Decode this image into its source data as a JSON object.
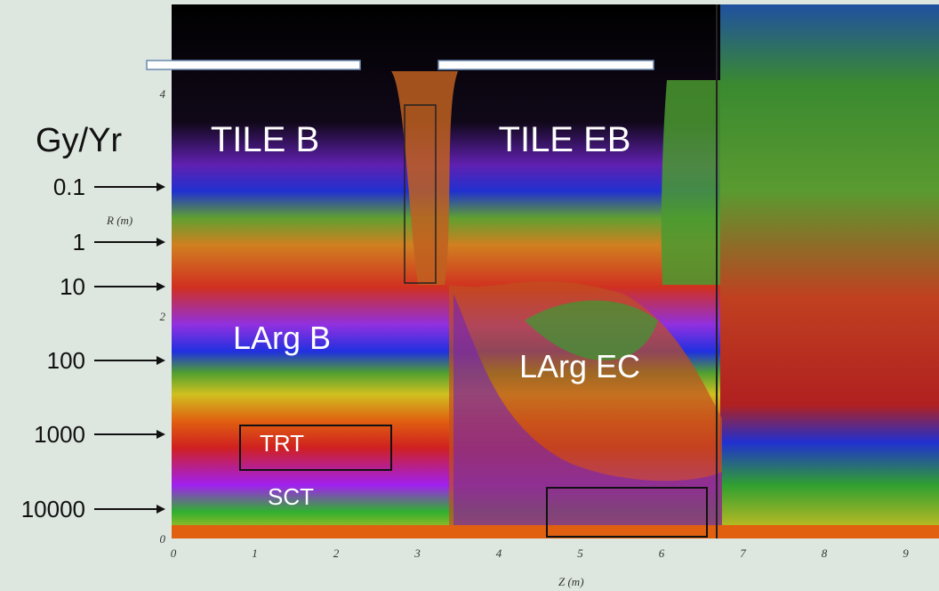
{
  "figure": {
    "unit_label": "Gy/Yr",
    "dose_levels": [
      "0.1",
      "1",
      "10",
      "100",
      "1000",
      "10000"
    ],
    "regions": [
      "TILE B",
      "TILE EB",
      "LArg B",
      "LArg EC",
      "TRT",
      "SCT"
    ],
    "x_axis": {
      "label": "Z (m)",
      "ticks": [
        "0",
        "1",
        "2",
        "3",
        "4",
        "5",
        "6",
        "7",
        "8",
        "9"
      ]
    },
    "y_axis": {
      "label": "R (m)",
      "ticks": [
        "0",
        "2",
        "4"
      ]
    }
  }
}
